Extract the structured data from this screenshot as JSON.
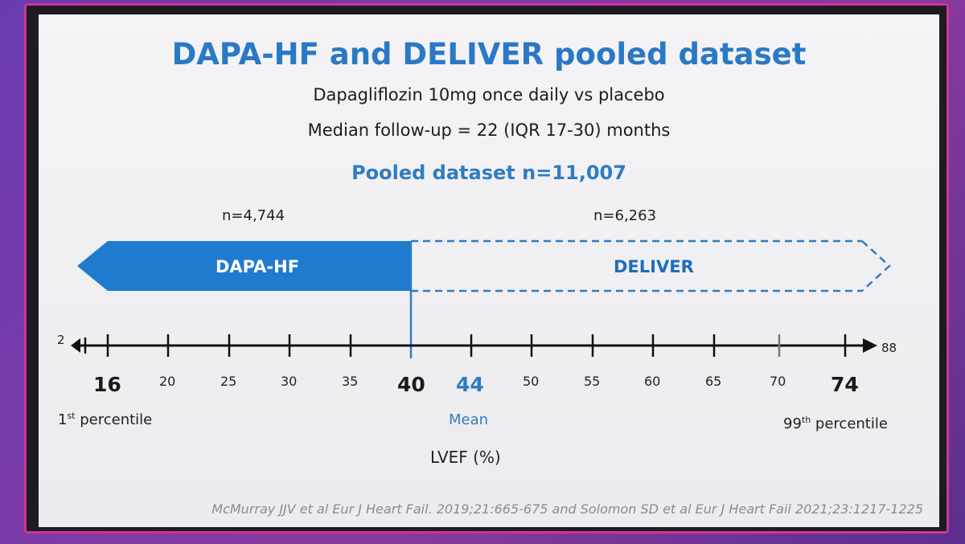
{
  "slide": {
    "title": "DAPA-HF and DELIVER pooled dataset",
    "subtitle_1": "Dapagliflozin 10mg once daily vs placebo",
    "subtitle_2": "Median follow-up = 22 (IQR 17-30) months",
    "pooled_label": "Pooled dataset n=11,007",
    "citation": "McMurray JJV et al Eur J Heart Fail. 2019;21:665-675 and Solomon SD et al Eur J Heart Fail 2021;23:1217-1225"
  },
  "groups": {
    "dapa": {
      "label": "DAPA-HF",
      "n": "n=4,744"
    },
    "deliver": {
      "label": "DELIVER",
      "n": "n=6,263"
    }
  },
  "axis": {
    "left_end": "2",
    "right_end": "88",
    "xlabel": "LVEF (%)",
    "ticks": [
      {
        "label": "16",
        "style": "big"
      },
      {
        "label": "20",
        "style": "small"
      },
      {
        "label": "25",
        "style": "small"
      },
      {
        "label": "30",
        "style": "small"
      },
      {
        "label": "35",
        "style": "small"
      },
      {
        "label": "40",
        "style": "big"
      },
      {
        "label": "44",
        "style": "blue"
      },
      {
        "label": "50",
        "style": "small"
      },
      {
        "label": "55",
        "style": "small"
      },
      {
        "label": "60",
        "style": "small"
      },
      {
        "label": "65",
        "style": "small"
      },
      {
        "label": "70",
        "style": "small"
      },
      {
        "label": "74",
        "style": "big"
      }
    ],
    "first_percentile": {
      "base": "1",
      "sup": "st",
      "rest": " percentile"
    },
    "mean": "Mean",
    "ninetyninth_percentile": {
      "base": "99",
      "sup": "th",
      "rest": " percentile"
    }
  },
  "colors": {
    "accent_blue": "#2979c6",
    "arrow_fill": "#1f7ad0",
    "dashed_blue": "#2f7cc3",
    "slide_bg": "#f2f1f4",
    "frame_border": "#d0359a"
  }
}
